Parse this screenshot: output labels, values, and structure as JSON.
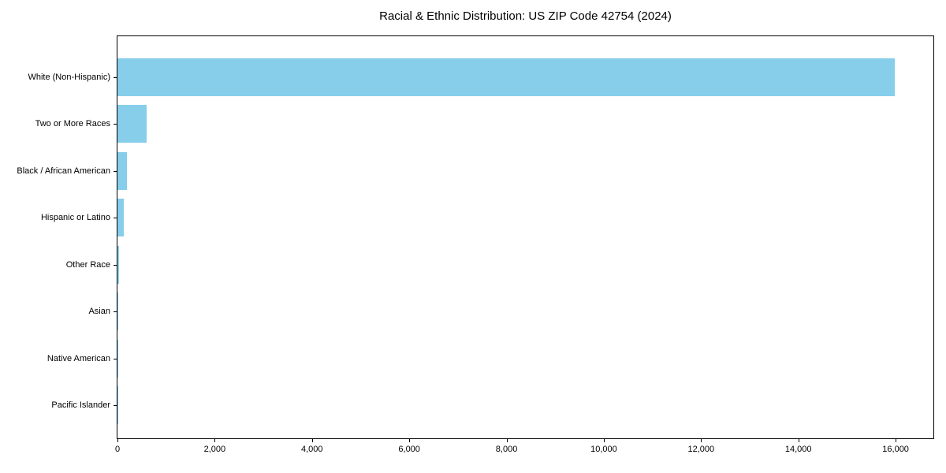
{
  "chart": {
    "title": "Racial & Ethnic Distribution: US ZIP Code 42754 (2024)",
    "bar_color": "#87CEEB",
    "axis_color": "#000000",
    "text_color": "#000000",
    "background_color": "#ffffff"
  },
  "chart_data": {
    "type": "bar",
    "orientation": "horizontal",
    "title": "Racial & Ethnic Distribution: US ZIP Code 42754 (2024)",
    "categories": [
      "White (Non-Hispanic)",
      "Two or More Races",
      "Black / African American",
      "Hispanic or Latino",
      "Other Race",
      "Asian",
      "Native American",
      "Pacific Islander"
    ],
    "values": [
      15980,
      600,
      195,
      130,
      25,
      10,
      6,
      3
    ],
    "xlabel": "",
    "ylabel": "",
    "xlim": [
      0,
      16776
    ],
    "x_ticks": [
      0,
      2000,
      4000,
      6000,
      8000,
      10000,
      12000,
      14000,
      16000
    ],
    "x_tick_labels": [
      "0",
      "2,000",
      "4,000",
      "6,000",
      "8,000",
      "10,000",
      "12,000",
      "14,000",
      "16,000"
    ],
    "grid": false,
    "legend_position": "none",
    "bar_color": "#87CEEB"
  }
}
